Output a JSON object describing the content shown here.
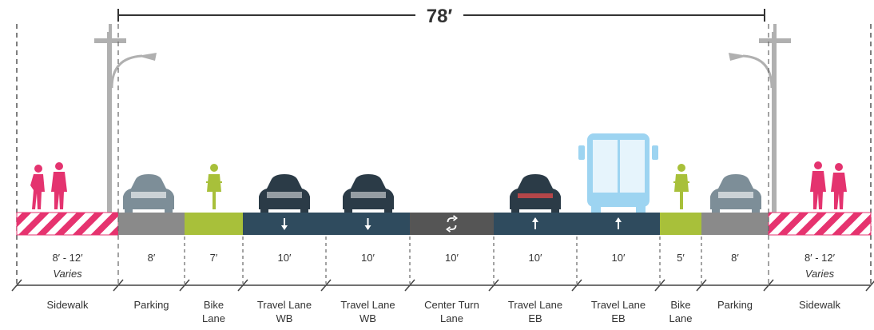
{
  "total_width": "78′",
  "colors": {
    "sidewalk": "#e6336f",
    "parking": "#8a8a8a",
    "bike": "#a8c03a",
    "travel": "#2f4b5e",
    "center": "#555555",
    "car_light": "#7d8e98",
    "car_dark": "#2b3b47",
    "bus": "#9dd4f1",
    "pedestrian": "#e4336f",
    "pole": "#b0b0b0"
  },
  "segments": [
    {
      "id": "sidewalk-left",
      "label": [
        "Sidewalk"
      ],
      "width": "8′ - 12′",
      "note": "Varies",
      "fill": "sidewalk"
    },
    {
      "id": "parking-left",
      "label": [
        "Parking"
      ],
      "width": "8′",
      "fill": "parking"
    },
    {
      "id": "bike-left",
      "label": [
        "Bike",
        "Lane"
      ],
      "width": "7′",
      "fill": "bike"
    },
    {
      "id": "travel-wb-1",
      "label": [
        "Travel Lane",
        "WB"
      ],
      "width": "10′",
      "fill": "travel",
      "arrow": "down"
    },
    {
      "id": "travel-wb-2",
      "label": [
        "Travel Lane",
        "WB"
      ],
      "width": "10′",
      "fill": "travel",
      "arrow": "down"
    },
    {
      "id": "center-turn",
      "label": [
        "Center Turn",
        "Lane"
      ],
      "width": "10′",
      "fill": "center",
      "arrow": "turn"
    },
    {
      "id": "travel-eb-1",
      "label": [
        "Travel Lane",
        "EB"
      ],
      "width": "10′",
      "fill": "travel",
      "arrow": "up"
    },
    {
      "id": "travel-eb-2",
      "label": [
        "Travel Lane",
        "EB"
      ],
      "width": "10′",
      "fill": "travel",
      "arrow": "up"
    },
    {
      "id": "bike-right",
      "label": [
        "Bike",
        "Lane"
      ],
      "width": "5′",
      "fill": "bike"
    },
    {
      "id": "parking-right",
      "label": [
        "Parking"
      ],
      "width": "8′",
      "fill": "parking"
    },
    {
      "id": "sidewalk-right",
      "label": [
        "Sidewalk"
      ],
      "width": "8′ - 12′",
      "note": "Varies",
      "fill": "sidewalk"
    }
  ]
}
